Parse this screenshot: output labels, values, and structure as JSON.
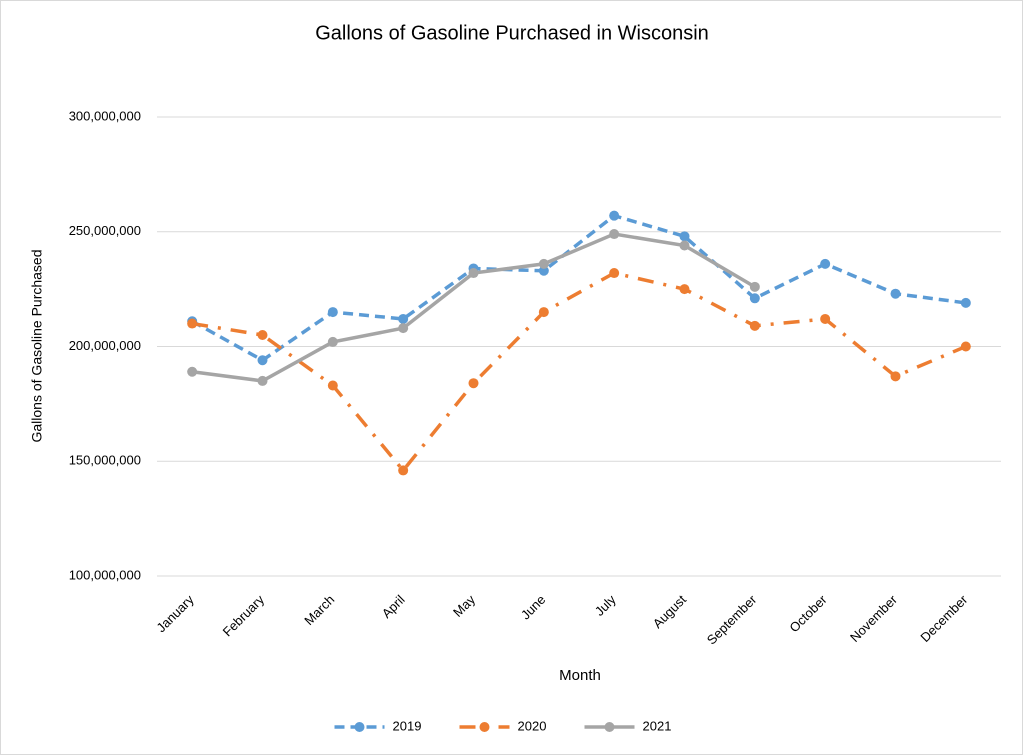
{
  "chart_data": {
    "type": "line",
    "title": "Gallons of Gasoline Purchased in Wisconsin",
    "x_label": "Month",
    "y_label": "Gallons of Gasoline Purchased",
    "categories": [
      "January",
      "February",
      "March",
      "April",
      "May",
      "June",
      "July",
      "August",
      "September",
      "October",
      "November",
      "December"
    ],
    "series": [
      {
        "name": "2019",
        "color": "#5b9bd5",
        "dash": "dashed",
        "values": [
          211000000,
          194000000,
          215000000,
          212000000,
          234000000,
          233000000,
          257000000,
          248000000,
          221000000,
          236000000,
          223000000,
          219000000
        ]
      },
      {
        "name": "2020",
        "color": "#ed7d31",
        "dash": "dash-dot",
        "values": [
          210000000,
          205000000,
          183000000,
          146000000,
          184000000,
          215000000,
          232000000,
          225000000,
          209000000,
          212000000,
          187000000,
          200000000
        ]
      },
      {
        "name": "2021",
        "color": "#a5a5a5",
        "dash": "solid",
        "values": [
          189000000,
          185000000,
          202000000,
          208000000,
          232000000,
          236000000,
          249000000,
          244000000,
          226000000,
          null,
          null,
          null
        ]
      }
    ],
    "ylim": [
      100000000,
      300000000
    ],
    "yticks": [
      {
        "value": 100000000,
        "label": "100,000,000"
      },
      {
        "value": 150000000,
        "label": "150,000,000"
      },
      {
        "value": 200000000,
        "label": "200,000,000"
      },
      {
        "value": 250000000,
        "label": "250,000,000"
      },
      {
        "value": 300000000,
        "label": "300,000,000"
      }
    ],
    "grid": true,
    "legend": "bottom"
  }
}
